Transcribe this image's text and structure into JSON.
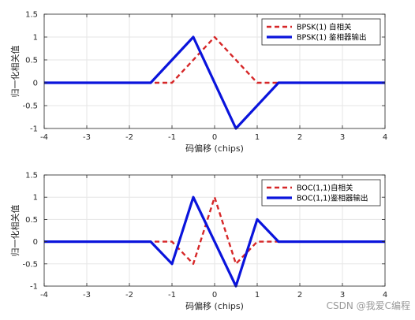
{
  "chart_data": [
    {
      "type": "line",
      "title": "",
      "xlabel": "码偏移 (chips)",
      "ylabel": "归一化相关值",
      "xlim": [
        -4,
        4
      ],
      "ylim": [
        -1,
        1.5
      ],
      "xticks": [
        "-4",
        "-3",
        "-2",
        "-1",
        "0",
        "1",
        "2",
        "3",
        "4"
      ],
      "yticks": [
        "-1",
        "-0.5",
        "0",
        "0.5",
        "1",
        "1.5"
      ],
      "grid": true,
      "legend_position": "top-right",
      "series": [
        {
          "name": "BPSK(1) 自相关",
          "color": "#d62728",
          "style": "dashed",
          "x": [
            -4,
            -1,
            0,
            1,
            4
          ],
          "y": [
            0,
            0,
            1,
            0,
            0
          ]
        },
        {
          "name": "BPSK(1) 鉴相器输出",
          "color": "#0a14dc",
          "style": "solid",
          "x": [
            -4,
            -1.5,
            -0.5,
            0.5,
            1.5,
            4
          ],
          "y": [
            0,
            0,
            1,
            -1,
            0,
            0
          ]
        }
      ]
    },
    {
      "type": "line",
      "title": "",
      "xlabel": "码偏移 (chips)",
      "ylabel": "归一化相关值",
      "xlim": [
        -4,
        4
      ],
      "ylim": [
        -1,
        1.5
      ],
      "xticks": [
        "-4",
        "-3",
        "-2",
        "-1",
        "0",
        "1",
        "2",
        "3",
        "4"
      ],
      "yticks": [
        "-1",
        "-0.5",
        "0",
        "0.5",
        "1",
        "1.5"
      ],
      "grid": true,
      "legend_position": "top-right",
      "series": [
        {
          "name": "BOC(1,1)自相关",
          "color": "#d62728",
          "style": "dashed",
          "x": [
            -4,
            -1,
            -0.5,
            0,
            0.5,
            1,
            4
          ],
          "y": [
            0,
            0,
            -0.5,
            1,
            -0.5,
            0,
            0
          ]
        },
        {
          "name": "BOC(1,1)鉴相器输出",
          "color": "#0a14dc",
          "style": "solid",
          "x": [
            -4,
            -1.5,
            -1,
            -0.5,
            0,
            0.5,
            1,
            1.5,
            4
          ],
          "y": [
            0,
            0,
            -0.5,
            1,
            0,
            -1,
            0.5,
            0,
            0
          ]
        }
      ]
    }
  ],
  "watermark": "CSDN @我爱C编程"
}
